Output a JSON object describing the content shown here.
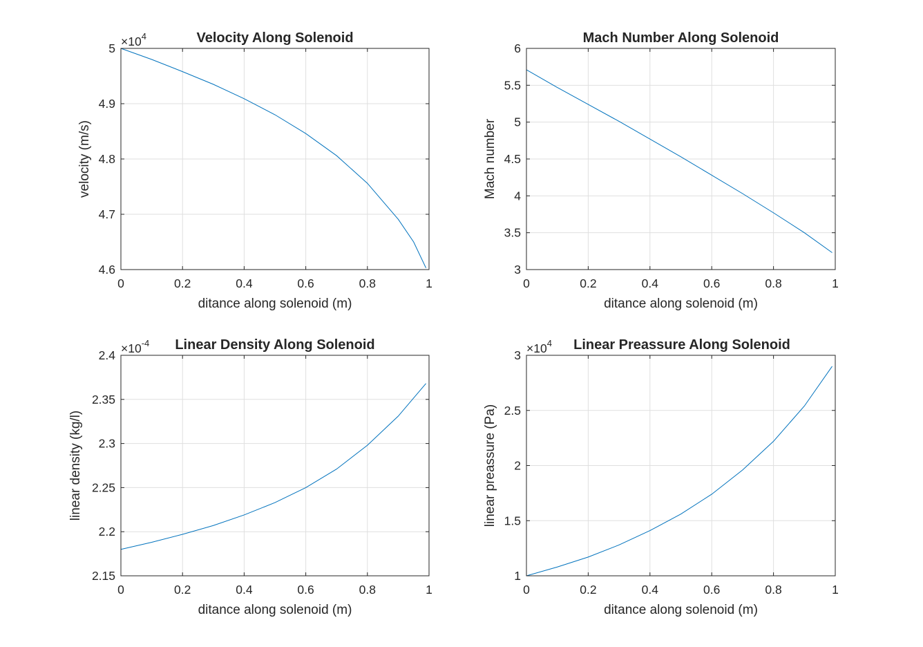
{
  "chart_data": [
    {
      "type": "line",
      "title": "Velocity Along Solenoid",
      "xlabel": "ditance along solenoid (m)",
      "ylabel": "velocity (m/s)",
      "xlim": [
        0,
        1
      ],
      "ylim": [
        46000,
        50000
      ],
      "xticks": [
        "0",
        "0.2",
        "0.4",
        "0.6",
        "0.8",
        "1"
      ],
      "yticks": [
        "4.6",
        "4.7",
        "4.8",
        "4.9",
        "5"
      ],
      "exponent": {
        "base": "×10",
        "power": "4"
      },
      "grid": true,
      "line_color": "#0072BD",
      "series": [
        {
          "x": [
            0,
            0.1,
            0.2,
            0.3,
            0.4,
            0.5,
            0.6,
            0.7,
            0.8,
            0.9,
            0.95,
            0.99
          ],
          "y": [
            50000,
            49800,
            49580,
            49350,
            49090,
            48800,
            48460,
            48060,
            47560,
            46910,
            46500,
            46030
          ]
        }
      ]
    },
    {
      "type": "line",
      "title": "Mach Number Along Solenoid",
      "xlabel": "ditance along solenoid (m)",
      "ylabel": "Mach number",
      "xlim": [
        0,
        1
      ],
      "ylim": [
        3,
        6
      ],
      "xticks": [
        "0",
        "0.2",
        "0.4",
        "0.6",
        "0.8",
        "1"
      ],
      "yticks": [
        "3",
        "3.5",
        "4",
        "4.5",
        "5",
        "5.5",
        "6"
      ],
      "grid": true,
      "line_color": "#0072BD",
      "series": [
        {
          "x": [
            0,
            0.1,
            0.2,
            0.3,
            0.4,
            0.5,
            0.6,
            0.7,
            0.8,
            0.9,
            0.99
          ],
          "y": [
            5.71,
            5.47,
            5.24,
            5.01,
            4.77,
            4.53,
            4.28,
            4.03,
            3.77,
            3.5,
            3.23
          ]
        }
      ]
    },
    {
      "type": "line",
      "title": "Linear Density Along Solenoid",
      "xlabel": "ditance along solenoid (m)",
      "ylabel": "linear density (kg/l)",
      "xlim": [
        0,
        1
      ],
      "ylim": [
        0.000215,
        0.00024
      ],
      "xticks": [
        "0",
        "0.2",
        "0.4",
        "0.6",
        "0.8",
        "1"
      ],
      "yticks": [
        "2.15",
        "2.2",
        "2.25",
        "2.3",
        "2.35",
        "2.4"
      ],
      "exponent": {
        "base": "×10",
        "power": "-4"
      },
      "grid": true,
      "line_color": "#0072BD",
      "series": [
        {
          "x": [
            0,
            0.1,
            0.2,
            0.3,
            0.4,
            0.5,
            0.6,
            0.7,
            0.8,
            0.9,
            0.99
          ],
          "y": [
            0.000218,
            0.0002188,
            0.0002197,
            0.0002207,
            0.0002219,
            0.0002233,
            0.000225,
            0.0002271,
            0.0002298,
            0.0002331,
            0.0002368
          ]
        }
      ]
    },
    {
      "type": "line",
      "title": "Linear Preassure Along Solenoid",
      "xlabel": "ditance along solenoid (m)",
      "ylabel": "linear preassure (Pa)",
      "xlim": [
        0,
        1
      ],
      "ylim": [
        10000,
        30000
      ],
      "xticks": [
        "0",
        "0.2",
        "0.4",
        "0.6",
        "0.8",
        "1"
      ],
      "yticks": [
        "1",
        "1.5",
        "2",
        "2.5",
        "3"
      ],
      "exponent": {
        "base": "×10",
        "power": "4"
      },
      "grid": true,
      "line_color": "#0072BD",
      "series": [
        {
          "x": [
            0,
            0.1,
            0.2,
            0.3,
            0.4,
            0.5,
            0.6,
            0.7,
            0.8,
            0.9,
            0.99
          ],
          "y": [
            10000,
            10800,
            11700,
            12800,
            14100,
            15600,
            17400,
            19600,
            22200,
            25400,
            29000
          ]
        }
      ]
    }
  ]
}
